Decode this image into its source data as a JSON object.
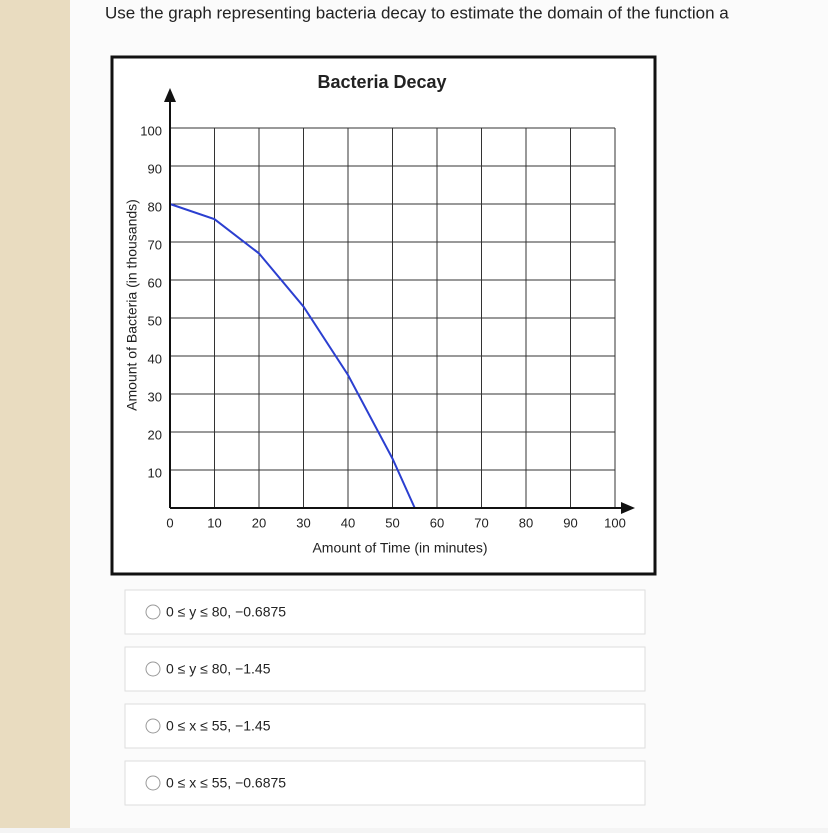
{
  "question": "Use the graph representing bacteria decay to estimate the domain of the function a",
  "chart_data": {
    "type": "line",
    "title": "Bacteria Decay",
    "x_label": "Amount of Time (in minutes)",
    "y_label": "Amount of Bacteria (in thousands)",
    "x": [
      0,
      10,
      20,
      30,
      40,
      50,
      55
    ],
    "series": [
      {
        "color": "#2b3fd0",
        "values": [
          80,
          76,
          67,
          53,
          35,
          13,
          0
        ]
      }
    ],
    "xlim": [
      0,
      100
    ],
    "xticks": [
      0,
      10,
      20,
      30,
      40,
      50,
      60,
      70,
      80,
      90,
      100
    ],
    "ylim": [
      0,
      100
    ],
    "yticks": [
      10,
      20,
      30,
      40,
      50,
      60,
      70,
      80,
      90,
      100
    ],
    "grid": true
  },
  "options": [
    "0 ≤ y ≤ 80, −0.6875",
    "0 ≤ y ≤ 80, −1.45",
    "0 ≤ x ≤ 55, −1.45",
    "0 ≤ x ≤ 55, −0.6875"
  ]
}
